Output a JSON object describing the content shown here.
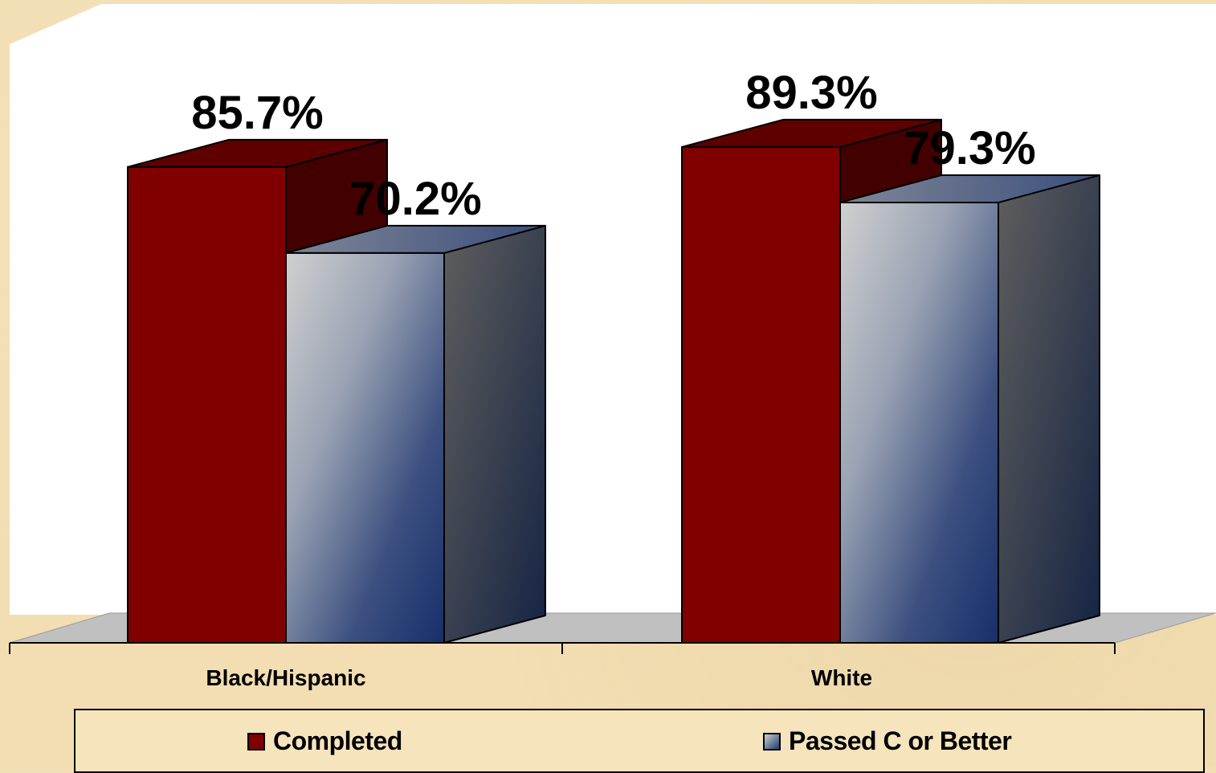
{
  "chart_data": {
    "type": "bar",
    "style": "3d-clustered-column",
    "title": "",
    "xlabel": "",
    "ylabel": "",
    "ylim": [
      0,
      100
    ],
    "grid": false,
    "legend_position": "bottom",
    "categories": [
      "Black/Hispanic",
      "White"
    ],
    "series": [
      {
        "name": "Completed",
        "values": [
          85.7,
          89.3
        ],
        "labels": [
          "85.7%",
          "89.3%"
        ],
        "color": "#800000"
      },
      {
        "name": "Passed C or Better",
        "values": [
          70.2,
          79.3
        ],
        "labels": [
          "70.2%",
          "79.3%"
        ],
        "color": "#1f3b6e"
      }
    ]
  }
}
